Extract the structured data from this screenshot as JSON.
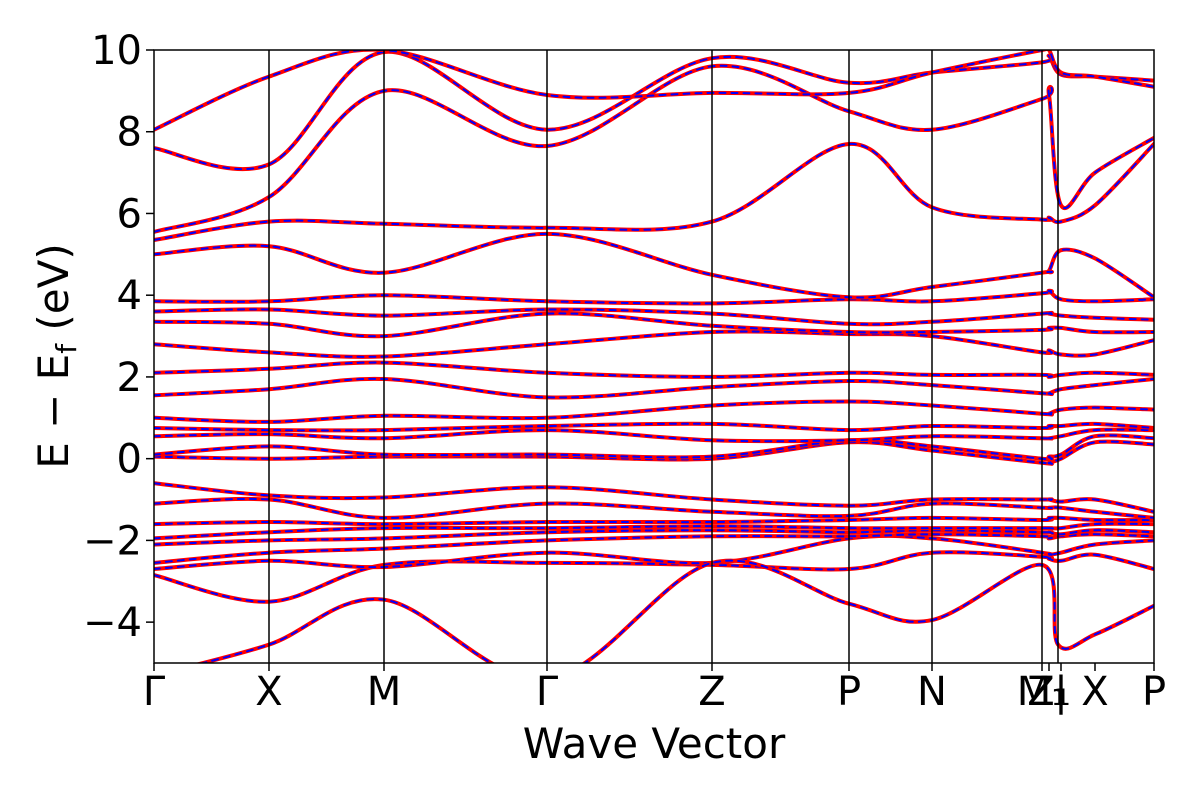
{
  "chart_data": {
    "type": "line",
    "title": "",
    "xlabel": "Wave Vector",
    "ylabel": "E − E_f (eV)",
    "ylabel_parts": {
      "main": "E − E",
      "sub": "f",
      "unit": " (eV)"
    },
    "ylim": [
      -5,
      10
    ],
    "yticks": [
      -4,
      -2,
      0,
      2,
      4,
      6,
      8,
      10
    ],
    "ytick_labels": [
      "−4",
      "−2",
      "0",
      "2",
      "4",
      "6",
      "8",
      "10"
    ],
    "xlim": [
      0,
      1
    ],
    "kpoints": [
      {
        "label": "Γ",
        "x": 0.0
      },
      {
        "label": "X",
        "x": 0.115
      },
      {
        "label": "M",
        "x": 0.23
      },
      {
        "label": "Γ",
        "x": 0.393
      },
      {
        "label": "Z",
        "x": 0.558
      },
      {
        "label": "P",
        "x": 0.695
      },
      {
        "label": "N",
        "x": 0.778
      },
      {
        "label": "M₁",
        "x": 0.888
      },
      {
        "label": "Z₁",
        "x": 0.895
      },
      {
        "label": "|",
        "x": 0.907
      },
      {
        "label": "X",
        "x": 0.941
      },
      {
        "label": "P",
        "x": 1.0
      }
    ],
    "vlines": [
      0.115,
      0.23,
      0.393,
      0.558,
      0.695,
      0.778,
      0.888,
      0.904
    ],
    "series_styles": [
      {
        "color": "#ff0000",
        "style": "solid"
      },
      {
        "color": "#0000ff",
        "style": "dashed"
      }
    ],
    "bands": [
      [
        -2.85,
        -3.5,
        -2.6,
        -2.55,
        -2.6,
        -2.7,
        -2.3,
        -2.4,
        -2.45,
        -2.5,
        -2.35,
        -2.7
      ],
      [
        -2.7,
        -2.5,
        -2.65,
        -2.3,
        -2.55,
        -1.95,
        -1.95,
        -2.3,
        -2.35,
        -2.3,
        -2.1,
        -2.0
      ],
      [
        -2.55,
        -2.3,
        -2.2,
        -2.0,
        -1.9,
        -1.9,
        -1.85,
        -1.9,
        -1.95,
        -1.9,
        -1.85,
        -1.9
      ],
      [
        -2.1,
        -2.0,
        -1.95,
        -1.8,
        -1.75,
        -1.8,
        -1.75,
        -1.8,
        -1.8,
        -1.85,
        -1.75,
        -1.8
      ],
      [
        -1.95,
        -1.8,
        -1.7,
        -1.7,
        -1.65,
        -1.7,
        -1.7,
        -1.7,
        -1.7,
        -1.7,
        -1.6,
        -1.6
      ],
      [
        -1.6,
        -1.55,
        -1.6,
        -1.55,
        -1.55,
        -1.5,
        -1.45,
        -1.5,
        -1.45,
        -1.45,
        -1.5,
        -1.5
      ],
      [
        -1.1,
        -1.0,
        -1.45,
        -1.1,
        -1.3,
        -1.4,
        -1.1,
        -1.2,
        -1.2,
        -1.2,
        -1.3,
        -1.45
      ],
      [
        -0.6,
        -0.9,
        -0.95,
        -0.7,
        -1.0,
        -1.15,
        -1.0,
        -1.0,
        -1.0,
        -1.05,
        -1.0,
        -1.3
      ],
      [
        0.05,
        0.0,
        0.05,
        0.05,
        0.0,
        0.4,
        0.2,
        -0.1,
        -0.1,
        0.0,
        0.4,
        0.35
      ],
      [
        0.1,
        0.3,
        0.1,
        0.1,
        0.05,
        0.45,
        0.3,
        0.0,
        0.05,
        0.1,
        0.55,
        0.5
      ],
      [
        0.55,
        0.6,
        0.5,
        0.7,
        0.45,
        0.45,
        0.55,
        0.5,
        0.5,
        0.55,
        0.7,
        0.7
      ],
      [
        0.75,
        0.7,
        0.7,
        0.8,
        0.85,
        0.7,
        0.8,
        0.75,
        0.8,
        0.8,
        0.85,
        0.75
      ],
      [
        1.0,
        0.9,
        1.05,
        1.0,
        1.3,
        1.4,
        1.3,
        1.1,
        1.1,
        1.2,
        1.25,
        1.2
      ],
      [
        1.55,
        1.7,
        1.95,
        1.5,
        1.75,
        1.9,
        1.8,
        1.6,
        1.6,
        1.7,
        1.8,
        1.95
      ],
      [
        2.1,
        2.2,
        2.35,
        2.1,
        2.0,
        2.1,
        2.05,
        2.05,
        2.0,
        2.05,
        2.1,
        2.05
      ],
      [
        2.8,
        2.6,
        2.5,
        2.8,
        3.1,
        3.05,
        3.0,
        2.6,
        2.65,
        2.55,
        2.55,
        2.9
      ],
      [
        3.35,
        3.3,
        3.0,
        3.55,
        3.25,
        3.1,
        3.1,
        3.15,
        3.2,
        3.2,
        3.1,
        3.1
      ],
      [
        3.6,
        3.65,
        3.5,
        3.65,
        3.55,
        3.3,
        3.35,
        3.55,
        3.55,
        3.5,
        3.45,
        3.4
      ],
      [
        3.85,
        3.85,
        4.0,
        3.85,
        3.8,
        3.9,
        3.85,
        4.05,
        4.1,
        3.9,
        3.85,
        3.9
      ],
      [
        5.0,
        5.2,
        4.55,
        5.5,
        4.5,
        3.95,
        4.2,
        4.55,
        4.6,
        5.1,
        4.9,
        3.95
      ],
      [
        5.35,
        5.8,
        5.75,
        5.65,
        5.8,
        7.7,
        6.15,
        5.85,
        5.9,
        5.8,
        6.2,
        7.7
      ],
      [
        5.55,
        6.4,
        9.0,
        7.65,
        9.6,
        8.5,
        8.05,
        8.8,
        8.9,
        6.2,
        7.0,
        7.85
      ],
      [
        7.6,
        7.2,
        9.95,
        8.05,
        9.8,
        9.2,
        9.45,
        9.7,
        9.85,
        9.4,
        9.35,
        9.25
      ],
      [
        8.05,
        9.35,
        10.0,
        8.9,
        8.95,
        8.95,
        9.45,
        10.0,
        10.0,
        9.45,
        9.35,
        9.1
      ]
    ],
    "extra_segments": [
      {
        "name": "deep-band",
        "points": [
          [
            0.0,
            -5.3
          ],
          [
            0.115,
            -4.55
          ],
          [
            0.23,
            -3.45
          ],
          [
            0.393,
            -5.4
          ],
          [
            0.558,
            -2.55
          ],
          [
            0.695,
            -3.55
          ],
          [
            0.778,
            -3.95
          ],
          [
            0.888,
            -2.6
          ],
          [
            0.904,
            -4.55
          ],
          [
            0.941,
            -4.3
          ],
          [
            1.0,
            -3.6
          ]
        ]
      }
    ]
  }
}
